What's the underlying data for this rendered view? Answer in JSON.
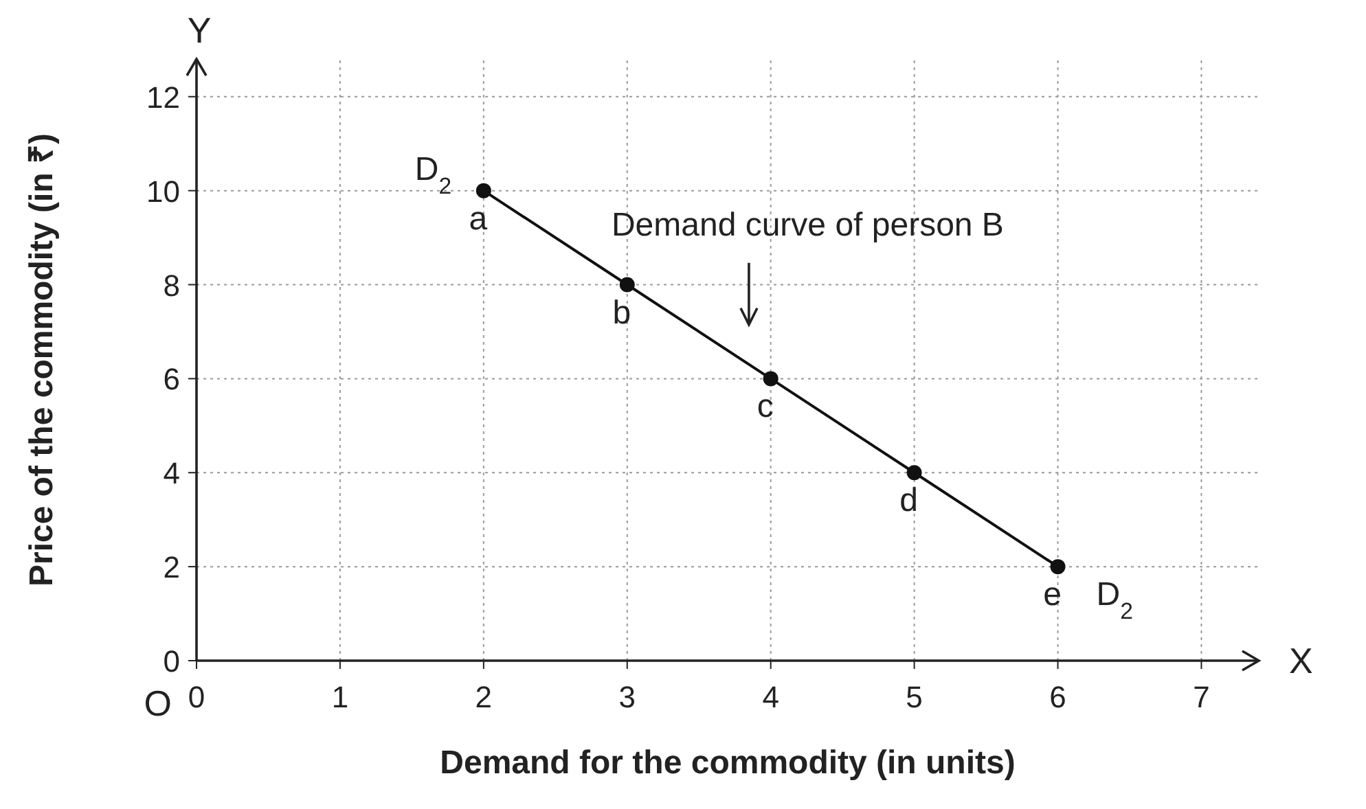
{
  "chart_data": {
    "type": "line",
    "xlabel": "Demand for the commodity (in units)",
    "ylabel": "Price of the commodity (in ₹)",
    "x": [
      2,
      3,
      4,
      5,
      6
    ],
    "series": [
      {
        "color": "#111111",
        "values": [
          10,
          8,
          6,
          4,
          2
        ],
        "value_labels": [
          "a",
          "b",
          "c",
          "d",
          "e"
        ]
      }
    ],
    "xlim": [
      0,
      7.4
    ],
    "ylim": [
      0,
      12.8
    ],
    "xticks": [
      0,
      1,
      2,
      3,
      4,
      5,
      6,
      7
    ],
    "yticks": [
      0,
      2,
      4,
      6,
      8,
      10,
      12
    ],
    "grid": true,
    "marker": "circle",
    "line_style": "solid",
    "annotations": [
      {
        "text": "D$_{2}$",
        "x": 2,
        "y": 10
      },
      {
        "text": "D$_{2}$",
        "x": 6,
        "y": 2
      },
      "O",
      "X",
      "Y",
      "Demand curve of person B"
    ]
  }
}
